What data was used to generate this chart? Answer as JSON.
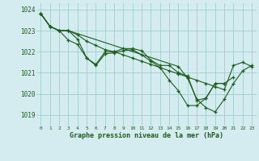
{
  "title": "Graphe pression niveau de la mer (hPa)",
  "background_color": "#d4ecf0",
  "grid_color": "#9ecece",
  "line_color": "#1a5c1a",
  "xlim": [
    -0.5,
    23.5
  ],
  "ylim": [
    1018.5,
    1024.3
  ],
  "yticks": [
    1019,
    1020,
    1021,
    1022,
    1023,
    1024
  ],
  "xticks": [
    0,
    1,
    2,
    3,
    4,
    5,
    6,
    7,
    8,
    9,
    10,
    11,
    12,
    13,
    14,
    15,
    16,
    17,
    18,
    19,
    20,
    21,
    22,
    23
  ],
  "series": [
    {
      "x": [
        0,
        1,
        2,
        3,
        4,
        5,
        6,
        7,
        8,
        9,
        10,
        11,
        12,
        13,
        14,
        15,
        16,
        17,
        18,
        19,
        20,
        21,
        22,
        23
      ],
      "y": [
        1023.8,
        1023.2,
        1023.0,
        1023.0,
        1022.8,
        1022.5,
        1022.3,
        1022.1,
        1022.0,
        1021.85,
        1021.7,
        1021.55,
        1021.4,
        1021.25,
        1021.1,
        1020.95,
        1020.8,
        1020.65,
        1020.5,
        1020.35,
        1020.2,
        1021.35,
        1021.5,
        1021.3
      ]
    },
    {
      "x": [
        0,
        1,
        2,
        3,
        4,
        5,
        6,
        7,
        8,
        9,
        10,
        11,
        12,
        13,
        14,
        15,
        16,
        17,
        18,
        19,
        20,
        21
      ],
      "y": [
        1023.8,
        1023.2,
        1023.0,
        1023.0,
        1022.6,
        1021.7,
        1021.4,
        1022.0,
        1022.0,
        1022.15,
        1022.15,
        1022.05,
        1021.6,
        1021.35,
        1021.35,
        1021.0,
        1020.85,
        1019.7,
        1019.8,
        1020.5,
        1020.5,
        1020.8
      ]
    },
    {
      "x": [
        0,
        1,
        2,
        3,
        4,
        5,
        6,
        7,
        8,
        9,
        10,
        11,
        12,
        13,
        14,
        15,
        16,
        17,
        18,
        19,
        20
      ],
      "y": [
        1023.8,
        1023.2,
        1023.0,
        1022.55,
        1022.35,
        1021.7,
        1021.35,
        1021.9,
        1021.95,
        1022.05,
        1022.1,
        1021.85,
        1021.55,
        1021.25,
        1020.65,
        1020.15,
        1019.45,
        1019.45,
        1019.8,
        1020.5,
        1020.5
      ]
    },
    {
      "x": [
        0,
        1,
        2,
        3,
        15,
        16,
        17,
        18,
        19,
        20,
        21,
        22,
        23
      ],
      "y": [
        1023.8,
        1023.2,
        1023.0,
        1023.0,
        1021.3,
        1020.75,
        1019.75,
        1019.35,
        1019.15,
        1019.75,
        1020.5,
        1021.1,
        1021.35
      ]
    }
  ]
}
